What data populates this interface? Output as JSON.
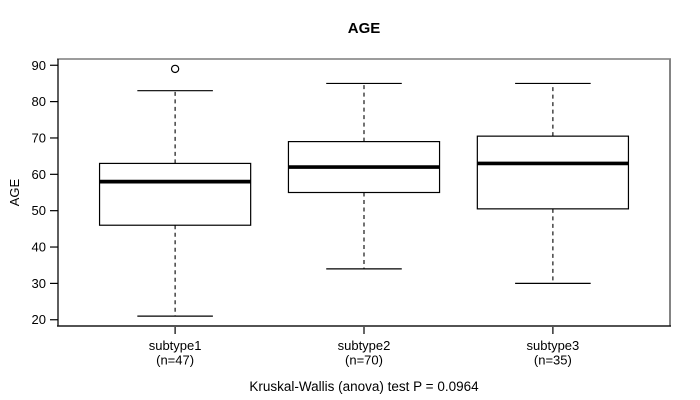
{
  "chart_data": {
    "type": "boxplot",
    "title": "AGE",
    "ylabel": "AGE",
    "xlabel": "",
    "ylim": [
      18.28,
      91.72
    ],
    "yticks": [
      20,
      30,
      40,
      50,
      60,
      70,
      80,
      90
    ],
    "grid": false,
    "legend": "none",
    "annotation": "Kruskal-Wallis (anova) test P = 0.0964",
    "groups": [
      {
        "label": "subtype1",
        "sublabel": "(n=47)",
        "n": 47,
        "stats": {
          "whisker_low": 21,
          "q1": 46,
          "median": 58,
          "q3": 63,
          "whisker_high": 83
        },
        "outliers": [
          89
        ]
      },
      {
        "label": "subtype2",
        "sublabel": "(n=70)",
        "n": 70,
        "stats": {
          "whisker_low": 34,
          "q1": 55,
          "median": 62,
          "q3": 69,
          "whisker_high": 85
        },
        "outliers": []
      },
      {
        "label": "subtype3",
        "sublabel": "(n=35)",
        "n": 35,
        "stats": {
          "whisker_low": 30,
          "q1": 50.5,
          "median": 63,
          "q3": 70.5,
          "whisker_high": 85
        },
        "outliers": []
      }
    ],
    "colors": {
      "stroke": "#000000",
      "box_fill": "#ffffff",
      "frame_top": "#9c9c9c",
      "frame_right": "#848484",
      "frame_bottom": "#1a1a1a",
      "frame_left": "#1a1a1a",
      "background": "#ffffff"
    }
  }
}
